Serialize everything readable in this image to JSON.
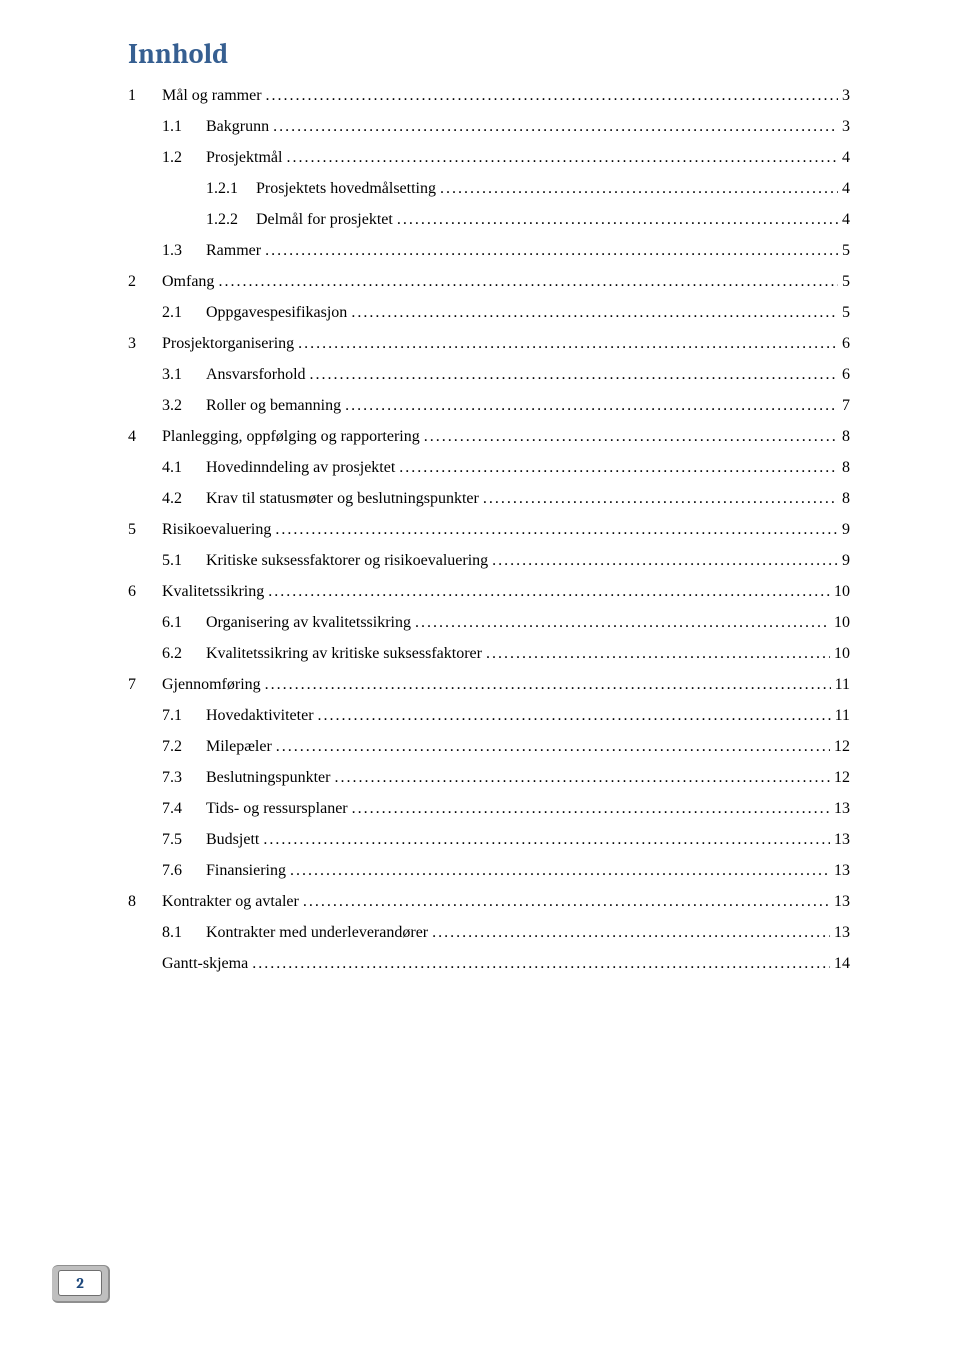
{
  "title": "Innhold",
  "page_number": "2",
  "colors": {
    "title": "#365f91",
    "text": "#000000",
    "badge_bg": "#bfbfbf",
    "badge_border": "#8f8f8f",
    "badge_text": "#1f497d",
    "background": "#ffffff"
  },
  "toc": [
    {
      "level": 1,
      "num": "1",
      "label": "Mål og rammer",
      "page": "3"
    },
    {
      "level": 2,
      "num": "1.1",
      "label": "Bakgrunn",
      "page": "3"
    },
    {
      "level": 2,
      "num": "1.2",
      "label": "Prosjektmål",
      "page": "4"
    },
    {
      "level": 3,
      "num": "1.2.1",
      "label": "Prosjektets hovedmålsetting",
      "page": "4"
    },
    {
      "level": 3,
      "num": "1.2.2",
      "label": "Delmål for prosjektet",
      "page": "4"
    },
    {
      "level": 2,
      "num": "1.3",
      "label": "Rammer",
      "page": "5"
    },
    {
      "level": 1,
      "num": "2",
      "label": "Omfang",
      "page": "5"
    },
    {
      "level": 2,
      "num": "2.1",
      "label": "Oppgavespesifikasjon",
      "page": "5"
    },
    {
      "level": 1,
      "num": "3",
      "label": "Prosjektorganisering",
      "page": "6"
    },
    {
      "level": 2,
      "num": "3.1",
      "label": "Ansvarsforhold",
      "page": "6"
    },
    {
      "level": 2,
      "num": "3.2",
      "label": "Roller og bemanning",
      "page": "7"
    },
    {
      "level": 1,
      "num": "4",
      "label": "Planlegging, oppfølging og rapportering",
      "page": "8"
    },
    {
      "level": 2,
      "num": "4.1",
      "label": "Hovedinndeling av prosjektet",
      "page": "8"
    },
    {
      "level": 2,
      "num": "4.2",
      "label": "Krav til statusmøter og beslutningspunkter",
      "page": "8"
    },
    {
      "level": 1,
      "num": "5",
      "label": "Risikoevaluering",
      "page": "9"
    },
    {
      "level": 2,
      "num": "5.1",
      "label": "Kritiske suksessfaktorer og risikoevaluering",
      "page": "9"
    },
    {
      "level": 1,
      "num": "6",
      "label": "Kvalitetssikring",
      "page": "10"
    },
    {
      "level": 2,
      "num": "6.1",
      "label": "Organisering av kvalitetssikring",
      "page": "10"
    },
    {
      "level": 2,
      "num": "6.2",
      "label": "Kvalitetssikring av kritiske suksessfaktorer",
      "page": "10"
    },
    {
      "level": 1,
      "num": "7",
      "label": "Gjennomføring",
      "page": "11"
    },
    {
      "level": 2,
      "num": "7.1",
      "label": "Hovedaktiviteter",
      "page": "11"
    },
    {
      "level": 2,
      "num": "7.2",
      "label": "Milepæler",
      "page": "12"
    },
    {
      "level": 2,
      "num": "7.3",
      "label": "Beslutningspunkter",
      "page": "12"
    },
    {
      "level": 2,
      "num": "7.4",
      "label": "Tids- og ressursplaner",
      "page": "13"
    },
    {
      "level": 2,
      "num": "7.5",
      "label": "Budsjett",
      "page": "13"
    },
    {
      "level": 2,
      "num": "7.6",
      "label": "Finansiering",
      "page": "13"
    },
    {
      "level": 1,
      "num": "8",
      "label": "Kontrakter og avtaler",
      "page": "13"
    },
    {
      "level": 2,
      "num": "8.1",
      "label": "Kontrakter med underleverandører",
      "page": "13"
    },
    {
      "level": "g",
      "num": "",
      "label": "Gantt-skjema",
      "page": "14"
    }
  ]
}
